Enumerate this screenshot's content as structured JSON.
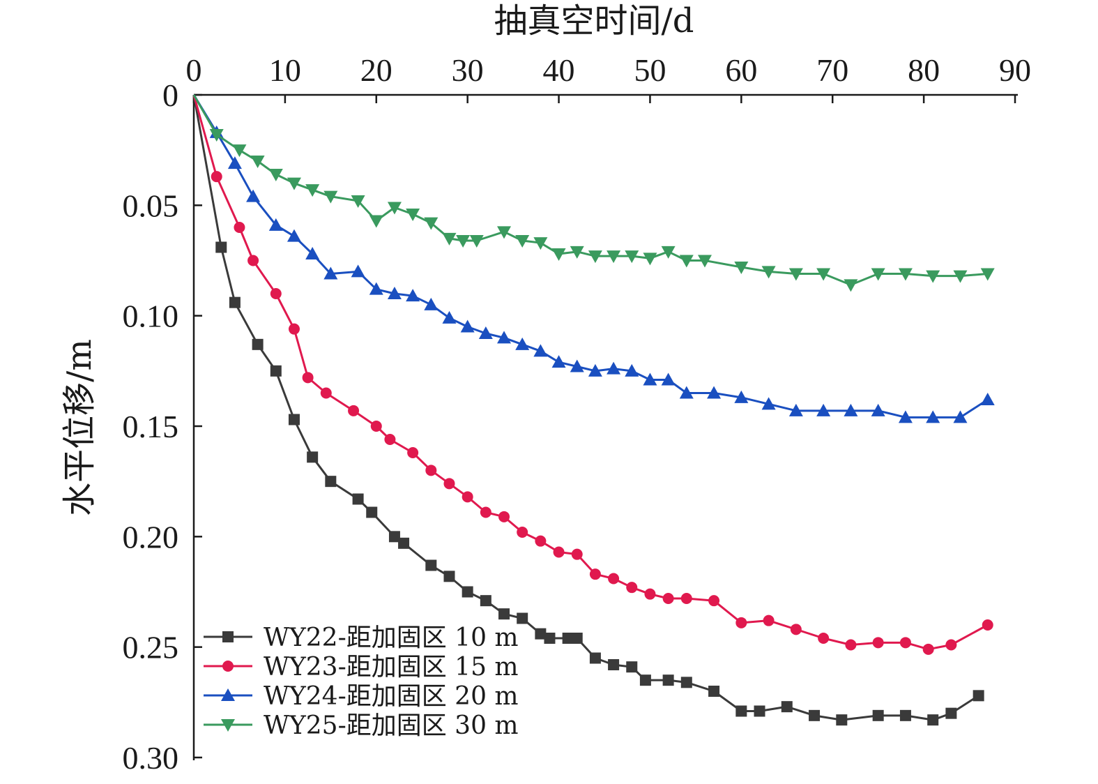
{
  "chart_data": {
    "type": "line",
    "xlabel": "抽真空时间/d",
    "ylabel": "水平位移/m",
    "xlim": [
      0,
      90
    ],
    "ylim": [
      0,
      0.3
    ],
    "x_ticks": [
      "0",
      "10",
      "20",
      "30",
      "40",
      "50",
      "60",
      "70",
      "80",
      "90"
    ],
    "y_ticks": [
      "0",
      "0.05",
      "0.10",
      "0.15",
      "0.20",
      "0.25",
      "0.30"
    ],
    "x_axis_position": "top",
    "y_axis_inverted": true,
    "legend_position": "bottom-left",
    "series": [
      {
        "name": "WY22-距加固区 10 m",
        "color": "#3a3a3a",
        "marker": "square",
        "x": [
          0,
          3,
          4.5,
          7,
          9,
          11,
          13,
          15,
          18,
          19.5,
          22,
          23,
          26,
          28,
          30,
          32,
          34,
          36,
          38,
          39,
          41,
          42,
          44,
          46,
          48,
          49.5,
          52,
          54,
          57,
          60,
          62,
          65,
          68,
          71,
          75,
          78,
          81,
          83,
          86
        ],
        "values": [
          0,
          0.069,
          0.094,
          0.113,
          0.125,
          0.147,
          0.164,
          0.175,
          0.183,
          0.189,
          0.2,
          0.203,
          0.213,
          0.218,
          0.225,
          0.229,
          0.235,
          0.237,
          0.244,
          0.246,
          0.246,
          0.246,
          0.255,
          0.258,
          0.259,
          0.265,
          0.265,
          0.266,
          0.27,
          0.279,
          0.279,
          0.277,
          0.281,
          0.283,
          0.281,
          0.281,
          0.283,
          0.28,
          0.272
        ]
      },
      {
        "name": "WY23-距加固区 15 m",
        "color": "#e0194e",
        "marker": "circle",
        "x": [
          0,
          2.5,
          5,
          6.5,
          9,
          11,
          12.5,
          14.5,
          17.5,
          20,
          21.5,
          24,
          26,
          28,
          30,
          32,
          34,
          36,
          38,
          40,
          42,
          44,
          46,
          48,
          50,
          52,
          54,
          57,
          60,
          63,
          66,
          69,
          72,
          75,
          78,
          80.5,
          83,
          87
        ],
        "values": [
          0,
          0.037,
          0.06,
          0.075,
          0.09,
          0.106,
          0.128,
          0.135,
          0.143,
          0.15,
          0.156,
          0.162,
          0.17,
          0.176,
          0.182,
          0.189,
          0.191,
          0.198,
          0.202,
          0.207,
          0.208,
          0.217,
          0.219,
          0.223,
          0.226,
          0.228,
          0.228,
          0.229,
          0.239,
          0.238,
          0.242,
          0.246,
          0.249,
          0.248,
          0.248,
          0.251,
          0.249,
          0.24
        ]
      },
      {
        "name": "WY24-距加固区 20 m",
        "color": "#1a4fc0",
        "marker": "triangle-up",
        "x": [
          0,
          2.5,
          4.5,
          6.5,
          9,
          11,
          13,
          15,
          18,
          20,
          22,
          24,
          26,
          28,
          30,
          32,
          34,
          36,
          38,
          40,
          42,
          44,
          46,
          48,
          50,
          52,
          54,
          57,
          60,
          63,
          66,
          69,
          72,
          75,
          78,
          81,
          84,
          87
        ],
        "values": [
          0,
          0.017,
          0.031,
          0.046,
          0.059,
          0.064,
          0.072,
          0.081,
          0.08,
          0.088,
          0.09,
          0.091,
          0.095,
          0.101,
          0.105,
          0.108,
          0.11,
          0.113,
          0.116,
          0.121,
          0.123,
          0.125,
          0.124,
          0.125,
          0.129,
          0.129,
          0.135,
          0.135,
          0.137,
          0.14,
          0.143,
          0.143,
          0.143,
          0.143,
          0.146,
          0.146,
          0.146,
          0.138
        ]
      },
      {
        "name": "WY25-距加固区 30 m",
        "color": "#3a9a5e",
        "marker": "triangle-down",
        "x": [
          0,
          2.5,
          5,
          7,
          9,
          11,
          13,
          15,
          18,
          20,
          22,
          24,
          26,
          28,
          29.5,
          31,
          34,
          36,
          38,
          40,
          42,
          44,
          46,
          48,
          50,
          52,
          54,
          56,
          60,
          63,
          66,
          69,
          72,
          75,
          78,
          81,
          84,
          87
        ],
        "values": [
          0,
          0.018,
          0.025,
          0.03,
          0.036,
          0.04,
          0.043,
          0.046,
          0.048,
          0.057,
          0.051,
          0.054,
          0.058,
          0.065,
          0.066,
          0.066,
          0.062,
          0.066,
          0.067,
          0.072,
          0.071,
          0.073,
          0.073,
          0.073,
          0.074,
          0.071,
          0.075,
          0.075,
          0.078,
          0.08,
          0.081,
          0.081,
          0.086,
          0.081,
          0.081,
          0.082,
          0.082,
          0.081
        ]
      }
    ]
  }
}
